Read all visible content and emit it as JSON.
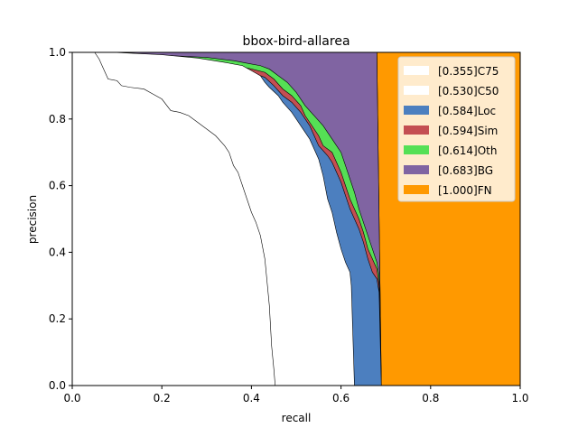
{
  "chart_data": {
    "type": "area",
    "title": "bbox-bird-allarea",
    "xlabel": "recall",
    "ylabel": "precision",
    "xlim": [
      0,
      1
    ],
    "ylim": [
      0,
      1
    ],
    "x_ticks": [
      "0.0",
      "0.2",
      "0.4",
      "0.6",
      "0.8",
      "1.0"
    ],
    "y_ticks": [
      "0.0",
      "0.2",
      "0.4",
      "0.6",
      "0.8",
      "1.0"
    ],
    "grid": false,
    "legend_position": "top-right",
    "series": [
      {
        "name": "[0.355]C75",
        "color": "#ffffff",
        "fill": true,
        "points": [
          [
            0.05,
            1.0
          ],
          [
            0.06,
            0.98
          ],
          [
            0.07,
            0.95
          ],
          [
            0.08,
            0.92
          ],
          [
            0.1,
            0.915
          ],
          [
            0.11,
            0.9
          ],
          [
            0.13,
            0.895
          ],
          [
            0.16,
            0.89
          ],
          [
            0.18,
            0.875
          ],
          [
            0.2,
            0.86
          ],
          [
            0.22,
            0.825
          ],
          [
            0.24,
            0.82
          ],
          [
            0.26,
            0.81
          ],
          [
            0.28,
            0.79
          ],
          [
            0.3,
            0.77
          ],
          [
            0.32,
            0.75
          ],
          [
            0.34,
            0.72
          ],
          [
            0.35,
            0.7
          ],
          [
            0.36,
            0.66
          ],
          [
            0.37,
            0.64
          ],
          [
            0.38,
            0.6
          ],
          [
            0.39,
            0.56
          ],
          [
            0.4,
            0.52
          ],
          [
            0.41,
            0.49
          ],
          [
            0.42,
            0.45
          ],
          [
            0.43,
            0.38
          ],
          [
            0.435,
            0.31
          ],
          [
            0.44,
            0.24
          ],
          [
            0.445,
            0.12
          ],
          [
            0.45,
            0.05
          ],
          [
            0.453,
            0.0
          ]
        ]
      },
      {
        "name": "[0.530]C50",
        "color": "#ffffff",
        "fill": true,
        "points": [
          [
            0.09,
            1.0
          ],
          [
            0.2,
            0.993
          ],
          [
            0.28,
            0.983
          ],
          [
            0.34,
            0.97
          ],
          [
            0.38,
            0.96
          ],
          [
            0.4,
            0.945
          ],
          [
            0.42,
            0.93
          ],
          [
            0.43,
            0.91
          ],
          [
            0.44,
            0.895
          ],
          [
            0.46,
            0.87
          ],
          [
            0.47,
            0.85
          ],
          [
            0.49,
            0.82
          ],
          [
            0.51,
            0.78
          ],
          [
            0.53,
            0.74
          ],
          [
            0.55,
            0.68
          ],
          [
            0.56,
            0.63
          ],
          [
            0.57,
            0.56
          ],
          [
            0.58,
            0.52
          ],
          [
            0.59,
            0.46
          ],
          [
            0.6,
            0.41
          ],
          [
            0.61,
            0.37
          ],
          [
            0.62,
            0.34
          ],
          [
            0.623,
            0.3
          ],
          [
            0.63,
            0.0
          ]
        ]
      },
      {
        "name": "[0.584]Loc",
        "color": "#4c7fbf",
        "fill": true,
        "points": [
          [
            0.08,
            1.0
          ],
          [
            0.2,
            0.99
          ],
          [
            0.28,
            0.975
          ],
          [
            0.35,
            0.96
          ],
          [
            0.4,
            0.94
          ],
          [
            0.43,
            0.925
          ],
          [
            0.45,
            0.9
          ],
          [
            0.47,
            0.87
          ],
          [
            0.49,
            0.85
          ],
          [
            0.51,
            0.82
          ],
          [
            0.53,
            0.78
          ],
          [
            0.54,
            0.75
          ],
          [
            0.55,
            0.72
          ],
          [
            0.57,
            0.69
          ],
          [
            0.58,
            0.67
          ],
          [
            0.6,
            0.61
          ],
          [
            0.61,
            0.57
          ],
          [
            0.62,
            0.53
          ],
          [
            0.64,
            0.47
          ],
          [
            0.65,
            0.43
          ],
          [
            0.66,
            0.38
          ],
          [
            0.67,
            0.34
          ],
          [
            0.68,
            0.32
          ],
          [
            0.685,
            0.28
          ],
          [
            0.69,
            0.0
          ]
        ]
      },
      {
        "name": "[0.594]Sim",
        "color": "#c44e52",
        "fill": true,
        "points": [
          [
            0.09,
            1.0
          ],
          [
            0.2,
            0.99
          ],
          [
            0.28,
            0.98
          ],
          [
            0.35,
            0.965
          ],
          [
            0.4,
            0.95
          ],
          [
            0.43,
            0.94
          ],
          [
            0.45,
            0.92
          ],
          [
            0.47,
            0.89
          ],
          [
            0.49,
            0.87
          ],
          [
            0.51,
            0.84
          ],
          [
            0.52,
            0.81
          ],
          [
            0.53,
            0.79
          ],
          [
            0.55,
            0.75
          ],
          [
            0.56,
            0.72
          ],
          [
            0.58,
            0.7
          ],
          [
            0.59,
            0.67
          ],
          [
            0.6,
            0.64
          ],
          [
            0.61,
            0.6
          ],
          [
            0.62,
            0.56
          ],
          [
            0.64,
            0.5
          ],
          [
            0.65,
            0.46
          ],
          [
            0.66,
            0.41
          ],
          [
            0.67,
            0.38
          ],
          [
            0.68,
            0.35
          ],
          [
            0.685,
            0.3
          ],
          [
            0.69,
            0.0
          ]
        ]
      },
      {
        "name": "[0.614]Oth",
        "color": "#55e055",
        "fill": true,
        "points": [
          [
            0.1,
            1.0
          ],
          [
            0.22,
            0.99
          ],
          [
            0.3,
            0.985
          ],
          [
            0.36,
            0.975
          ],
          [
            0.4,
            0.965
          ],
          [
            0.42,
            0.96
          ],
          [
            0.44,
            0.95
          ],
          [
            0.46,
            0.93
          ],
          [
            0.48,
            0.91
          ],
          [
            0.5,
            0.88
          ],
          [
            0.52,
            0.84
          ],
          [
            0.54,
            0.81
          ],
          [
            0.56,
            0.78
          ],
          [
            0.58,
            0.74
          ],
          [
            0.6,
            0.7
          ],
          [
            0.61,
            0.66
          ],
          [
            0.62,
            0.62
          ],
          [
            0.63,
            0.58
          ],
          [
            0.64,
            0.53
          ],
          [
            0.65,
            0.49
          ],
          [
            0.66,
            0.45
          ],
          [
            0.67,
            0.41
          ],
          [
            0.68,
            0.37
          ],
          [
            0.685,
            0.33
          ],
          [
            0.69,
            0.0
          ]
        ]
      },
      {
        "name": "[0.683]BG",
        "color": "#8064a2",
        "fill": true,
        "points": [
          [
            0.1,
            1.0
          ],
          [
            0.68,
            1.0
          ],
          [
            0.69,
            0.0
          ]
        ]
      },
      {
        "name": "[1.000]FN",
        "color": "#ff9900",
        "fill": true,
        "points": [
          [
            0.68,
            1.0
          ],
          [
            1.0,
            1.0
          ],
          [
            1.0,
            0.0
          ],
          [
            0.69,
            0.0
          ]
        ]
      }
    ]
  }
}
